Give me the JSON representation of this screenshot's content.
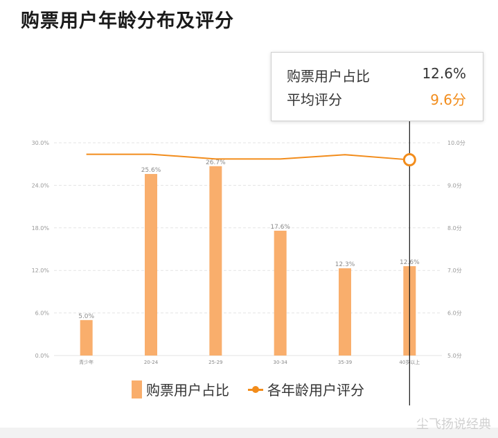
{
  "title": "购票用户年龄分布及评分",
  "tooltip": {
    "share_label": "购票用户占比",
    "share_value": "12.6%",
    "rating_label": "平均评分",
    "rating_value": "9.6分"
  },
  "legend": {
    "bar_label": "购票用户占比",
    "line_label": "各年龄用户评分"
  },
  "watermark": "尘飞扬说经典",
  "colors": {
    "bar": "#f9ae6c",
    "line": "#f28c1b",
    "grid": "#e3e3e3",
    "tick_text": "#999999"
  },
  "chart_data": {
    "type": "bar+line",
    "categories": [
      "青少年",
      "20-24",
      "25-29",
      "30-34",
      "35-39",
      "40岁以上"
    ],
    "series": [
      {
        "name": "购票用户占比",
        "type": "bar",
        "axis": "left",
        "values": [
          5.0,
          25.6,
          26.7,
          17.6,
          12.3,
          12.6
        ],
        "data_labels": [
          "5.0%",
          "25.6%",
          "26.7%",
          "17.6%",
          "12.3%",
          "12.6%"
        ]
      },
      {
        "name": "各年龄用户评分",
        "type": "line",
        "axis": "right",
        "values": [
          9.73,
          9.73,
          9.62,
          9.62,
          9.72,
          9.6
        ],
        "highlight_index": 5
      }
    ],
    "y_left": {
      "ylim": [
        0,
        30
      ],
      "ticks": [
        0,
        6,
        12,
        18,
        24,
        30
      ],
      "tick_labels": [
        "0.0%",
        "6.0%",
        "12.0%",
        "18.0%",
        "24.0%",
        "30.0%"
      ]
    },
    "y_right": {
      "ylim": [
        5,
        10
      ],
      "ticks": [
        5,
        6,
        7,
        8,
        9,
        10
      ],
      "tick_labels": [
        "5.0分",
        "6.0分",
        "7.0分",
        "8.0分",
        "9.0分",
        "10.0分"
      ]
    },
    "grid": true,
    "grid_style": "dashed",
    "legend_position": "bottom-center"
  }
}
